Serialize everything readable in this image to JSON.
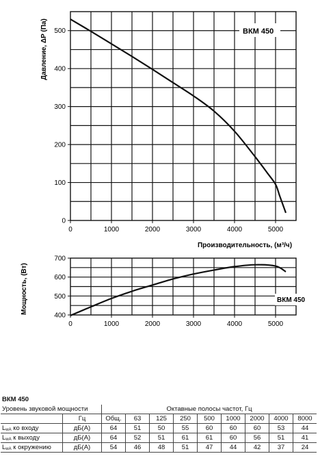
{
  "chart_data": [
    {
      "type": "line",
      "title": "",
      "xlabel": "Производительность, (м³/ч)",
      "ylabel": "Давление, ΔP (Па)",
      "xlim": [
        0,
        5500
      ],
      "ylim": [
        0,
        550
      ],
      "xticks": [
        "0",
        "1000",
        "2000",
        "3000",
        "4000",
        "5000"
      ],
      "yticks": [
        "0",
        "100",
        "200",
        "300",
        "400",
        "500"
      ],
      "grid": true,
      "series": [
        {
          "name": "ВКМ 450",
          "x": [
            0,
            500,
            1000,
            1500,
            2000,
            2500,
            3000,
            3500,
            4000,
            4500,
            4800,
            5000,
            5100,
            5250
          ],
          "y": [
            530,
            498,
            465,
            432,
            398,
            363,
            328,
            288,
            235,
            168,
            125,
            95,
            65,
            20
          ]
        }
      ]
    },
    {
      "type": "line",
      "title": "",
      "xlabel": "",
      "ylabel": "Мощность, (Вт)",
      "xlim": [
        0,
        5500
      ],
      "ylim": [
        400,
        700
      ],
      "xticks": [
        "0",
        "1000",
        "2000",
        "3000",
        "4000",
        "5000"
      ],
      "yticks": [
        "400",
        "500",
        "600",
        "700"
      ],
      "grid": true,
      "series": [
        {
          "name": "ВКМ 450",
          "x": [
            0,
            500,
            1000,
            1500,
            2000,
            2500,
            3000,
            3500,
            4000,
            4500,
            5000,
            5250
          ],
          "y": [
            397,
            443,
            487,
            525,
            558,
            590,
            616,
            637,
            655,
            665,
            658,
            628
          ]
        }
      ]
    }
  ],
  "noise_table": {
    "title": "ВКМ 450",
    "head_label": "Уровень звуковой мощности",
    "bands_label": "Октавные полосы частот, Гц",
    "unit_header": "Гц",
    "columns": [
      "Общ.",
      "63",
      "125",
      "250",
      "500",
      "1000",
      "2000",
      "4000",
      "8000"
    ],
    "rows": [
      {
        "label_sub": "wA",
        "label_rest": " ко входу",
        "unit": "дБ(А)",
        "values": [
          "64",
          "51",
          "50",
          "55",
          "60",
          "60",
          "60",
          "53",
          "44"
        ]
      },
      {
        "label_sub": "wA",
        "label_rest": " к выходу",
        "unit": "дБ(А)",
        "values": [
          "64",
          "52",
          "51",
          "61",
          "61",
          "60",
          "56",
          "51",
          "41"
        ]
      },
      {
        "label_sub": "wA",
        "label_rest": " к окружению",
        "unit": "дБ(А)",
        "values": [
          "54",
          "46",
          "48",
          "51",
          "47",
          "44",
          "42",
          "37",
          "24"
        ]
      }
    ]
  }
}
